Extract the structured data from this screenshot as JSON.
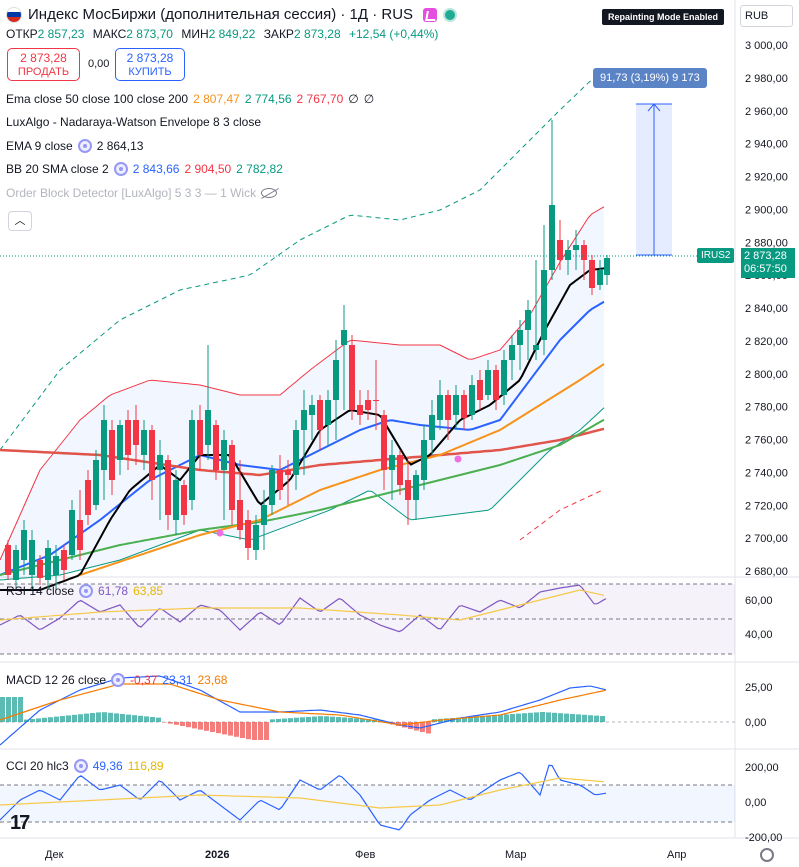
{
  "header": {
    "title": "Индекс МосБиржи (дополнительная сессия) · 1Д · RUS",
    "ohlc": [
      {
        "label": "ОТКР",
        "value": "2 857,23"
      },
      {
        "label": "МАКС",
        "value": "2 873,70"
      },
      {
        "label": "МИН",
        "value": "2 849,22"
      },
      {
        "label": "ЗАКР",
        "value": "2 873,28"
      },
      {
        "label": "",
        "value": "+12,54 (+0,44%)"
      }
    ],
    "sell": {
      "price": "2 873,28",
      "label": "ПРОДАТЬ"
    },
    "spread": "0,00",
    "buy": {
      "price": "2 873,28",
      "label": "КУПИТЬ"
    }
  },
  "badges": {
    "repaint": "Repainting Mode Enabled",
    "currency": "RUB",
    "measure": "91,73 (3,19%) 9 173",
    "symbol": "IRUS2",
    "last_price": "2 873,28",
    "countdown": "06:57:50"
  },
  "indicators": [
    {
      "name": "Ema close 50 close 100 close 200",
      "values": [
        {
          "v": "2 807,47",
          "c": "#f7931a"
        },
        {
          "v": "2 774,56",
          "c": "#089981"
        },
        {
          "v": "2 767,70",
          "c": "#f23645"
        },
        {
          "v": "∅",
          "c": "#131722"
        },
        {
          "v": "∅",
          "c": "#131722"
        }
      ],
      "gear": false
    },
    {
      "name": "LuxAlgo - Nadaraya-Watson Envelope 8 3 close",
      "values": [],
      "gear": false
    },
    {
      "name": "EMA 9 close",
      "values": [
        {
          "v": "2 864,13",
          "c": "#131722"
        }
      ],
      "gear": true
    },
    {
      "name": "BB 20 SMA close 2",
      "values": [
        {
          "v": "2 843,66",
          "c": "#2962ff"
        },
        {
          "v": "2 904,50",
          "c": "#f23645"
        },
        {
          "v": "2 782,82",
          "c": "#089981"
        }
      ],
      "gear": true
    },
    {
      "name": "Order Block Detector [LuxAlgo] 5 3 3 — 1 Wick",
      "values": [],
      "gear": false,
      "muted": true
    }
  ],
  "price_axis": [
    "3 000,00",
    "2 980,00",
    "2 960,00",
    "2 940,00",
    "2 920,00",
    "2 900,00",
    "2 880,00",
    "2 860,00",
    "2 840,00",
    "2 820,00",
    "2 800,00",
    "2 780,00",
    "2 760,00",
    "2 740,00",
    "2 720,00",
    "2 700,00",
    "2 680,00"
  ],
  "rsi": {
    "label": "RSI 14 close",
    "v1": "61,78",
    "v2": "63,85",
    "axis": [
      "60,00",
      "40,00"
    ]
  },
  "macd": {
    "label": "MACD 12 26 close",
    "v1": "-0,37",
    "v2": "23,31",
    "v3": "23,68",
    "axis": [
      "25,00",
      "0,00"
    ]
  },
  "cci": {
    "label": "CCI 20 hlc3",
    "v1": "49,36",
    "v2": "116,89",
    "axis": [
      "200,00",
      "0,00",
      "-200,00"
    ]
  },
  "time_axis": [
    "Дек",
    "2026",
    "Фев",
    "Мар",
    "Апр"
  ],
  "colors": {
    "up": "#089981",
    "down": "#f23645",
    "ema50": "#f7931a",
    "ema100": "#4caf50",
    "ema200": "#e0544a",
    "ema9": "#000000",
    "bb_basis": "#2962ff",
    "bb_upper": "#f23645",
    "bb_lower": "#089981",
    "nw_envelope": "#089981",
    "rsi": "#7e57c2",
    "rsi_ma": "#f7c948",
    "macd": "#2962ff",
    "signal": "#f57c00",
    "cci": "#2962ff",
    "cci_ma": "#f7c948"
  }
}
